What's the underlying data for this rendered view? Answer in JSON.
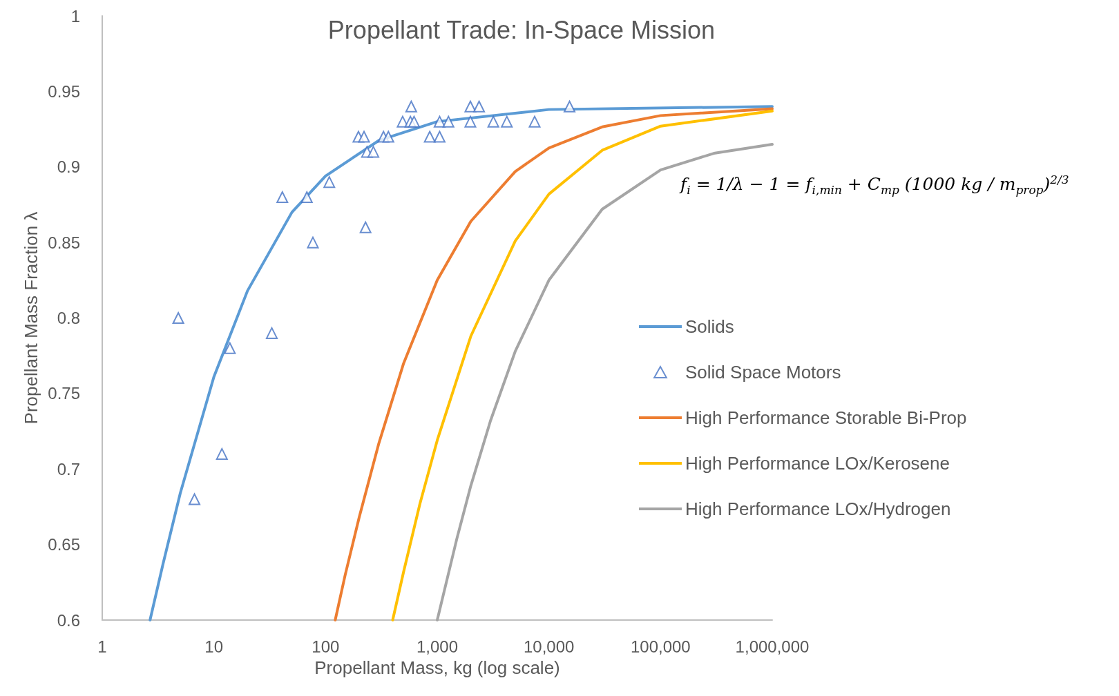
{
  "chart_data": {
    "type": "line",
    "title": "Propellant Trade: In-Space Mission",
    "xlabel": "Propellant Mass, kg (log scale)",
    "ylabel": "Propellant Mass Fraction λ",
    "log": "x",
    "xlim": [
      1,
      1000000
    ],
    "ylim": [
      0.6,
      1
    ],
    "xticks": [
      1,
      10,
      100,
      {
        "value": 1000,
        "label": "1,000"
      },
      {
        "value": 10000,
        "label": "10,000"
      },
      {
        "value": 100000,
        "label": "100,000"
      },
      {
        "value": 1000000,
        "label": "1,000,000"
      }
    ],
    "yticks": [
      0.6,
      0.65,
      0.7,
      0.75,
      0.8,
      0.85,
      0.9,
      0.95,
      1
    ],
    "grid": false,
    "legend": "right",
    "line_style": "solid",
    "marker": "none",
    "annotations": [
      "f$_{i}$ = 1/λ − 1 = f$_{i,min}$ + C$_{mp}$ (1000 kg / m$_{prop}$)$^{2/3}$"
    ],
    "series": [
      {
        "name": "Solids",
        "color": "#5b9bd5",
        "x": [
          2.68,
          3.5,
          5,
          10,
          20,
          50,
          100,
          300,
          1000,
          10000,
          1000000
        ],
        "values": [
          0.6,
          0.637,
          0.684,
          0.761,
          0.818,
          0.87,
          0.894,
          0.9175,
          0.93,
          0.938,
          0.94
        ]
      },
      {
        "name": "Solid Space Motors",
        "type": "scatter",
        "marker": "triangle",
        "color": "#4472c4",
        "x": [
          4.8,
          6.7,
          11.8,
          13.9,
          33,
          41,
          68,
          77,
          108,
          197,
          221,
          228,
          235,
          268,
          330,
          365,
          490,
          585,
          575,
          620,
          857,
          1050,
          1050,
          1260,
          1980,
          2370,
          1980,
          3180,
          4200,
          7450,
          15300
        ],
        "values": [
          0.8,
          0.68,
          0.71,
          0.78,
          0.79,
          0.88,
          0.88,
          0.85,
          0.89,
          0.92,
          0.92,
          0.86,
          0.91,
          0.91,
          0.92,
          0.92,
          0.93,
          0.94,
          0.93,
          0.93,
          0.92,
          0.92,
          0.93,
          0.93,
          0.94,
          0.94,
          0.93,
          0.93,
          0.93,
          0.93,
          0.94
        ]
      },
      {
        "name": "High Performance Storable Bi-Prop",
        "color": "#ed7d31",
        "x": [
          122,
          150,
          200,
          300,
          500,
          1000,
          2000,
          5000,
          10000,
          30000,
          100000,
          1000000
        ],
        "values": [
          0.6,
          0.63,
          0.668,
          0.717,
          0.77,
          0.825,
          0.864,
          0.897,
          0.9125,
          0.9265,
          0.934,
          0.9385
        ]
      },
      {
        "name": "High Performance LOx/Kerosene",
        "color": "#ffc000",
        "x": [
          399,
          500,
          700,
          1000,
          2000,
          5000,
          10000,
          30000,
          100000,
          1000000
        ],
        "values": [
          0.6,
          0.632,
          0.677,
          0.719,
          0.788,
          0.851,
          0.882,
          0.911,
          0.927,
          0.937
        ]
      },
      {
        "name": "High Performance LOx/Hydrogen",
        "color": "#a5a5a5",
        "x": [
          1000,
          1500,
          2000,
          3000,
          5000,
          10000,
          30000,
          100000,
          300000,
          1000000
        ],
        "values": [
          0.6,
          0.654,
          0.689,
          0.732,
          0.778,
          0.825,
          0.872,
          0.898,
          0.909,
          0.915
        ]
      }
    ]
  }
}
